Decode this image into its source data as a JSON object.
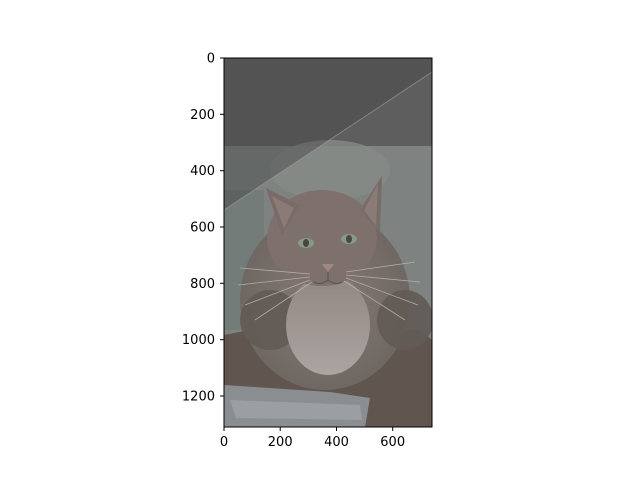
{
  "image": {
    "subject": "cat-photo",
    "overlay": "semi-transparent diagonal dark gray wedge"
  },
  "axes": {
    "x": {
      "ticks": [
        "0",
        "200",
        "400",
        "600"
      ],
      "values": [
        0,
        200,
        400,
        600
      ],
      "range": [
        0,
        740
      ]
    },
    "y": {
      "ticks": [
        "0",
        "200",
        "400",
        "600",
        "800",
        "1000",
        "1200"
      ],
      "values": [
        0,
        200,
        400,
        600,
        800,
        1000,
        1200
      ],
      "range": [
        0,
        1310
      ]
    }
  },
  "colors": {
    "dark_band": "#575757",
    "wall": "#808683",
    "fur": "#7d6e69",
    "axis": "#000000"
  }
}
